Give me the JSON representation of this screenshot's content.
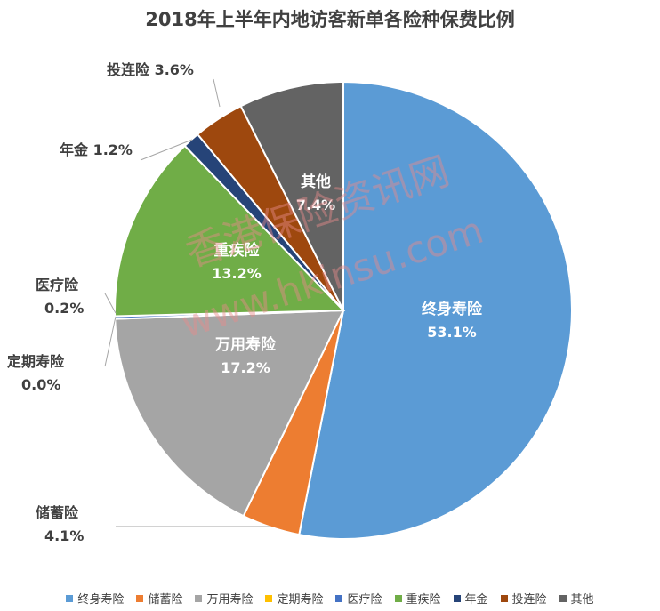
{
  "chart_data": {
    "type": "pie",
    "title": "2018年上半年内地访客新单各险种保费比例",
    "slices": [
      {
        "name": "终身寿险",
        "value": 53.1,
        "label": "53.1%",
        "color": "#5b9bd5"
      },
      {
        "name": "储蓄险",
        "value": 4.1,
        "label": "4.1%",
        "color": "#ed7d31"
      },
      {
        "name": "万用寿险",
        "value": 17.2,
        "label": "17.2%",
        "color": "#a5a5a5"
      },
      {
        "name": "定期寿险",
        "value": 0.0,
        "label": "0.0%",
        "color": "#ffc000"
      },
      {
        "name": "医疗险",
        "value": 0.2,
        "label": "0.2%",
        "color": "#4472c4"
      },
      {
        "name": "重疾险",
        "value": 13.2,
        "label": "13.2%",
        "color": "#70ad47"
      },
      {
        "name": "年金",
        "value": 1.2,
        "label": "1.2%",
        "color": "#264478"
      },
      {
        "name": "投连险",
        "value": 3.6,
        "label": "3.6%",
        "color": "#9e480e"
      },
      {
        "name": "其他",
        "value": 7.4,
        "label": "7.4%",
        "color": "#636363"
      }
    ],
    "legend_position": "bottom",
    "watermark": [
      "香港保险资讯网",
      "www.hkinsu.com"
    ]
  }
}
